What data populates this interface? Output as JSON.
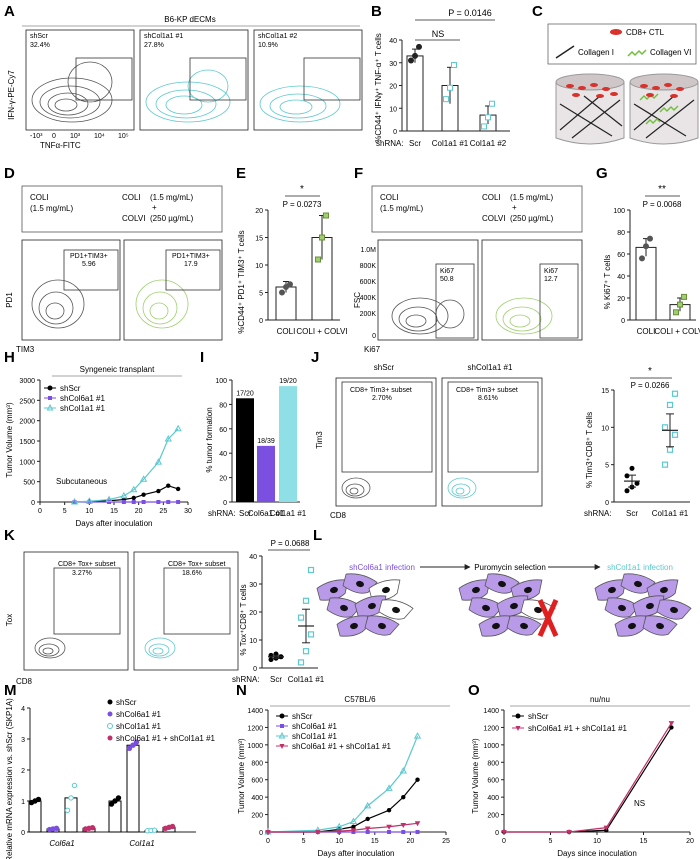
{
  "panel_letters": [
    "A",
    "B",
    "C",
    "D",
    "E",
    "F",
    "G",
    "H",
    "I",
    "J",
    "K",
    "L",
    "M",
    "N",
    "O"
  ],
  "colors": {
    "gray": "#555555",
    "cyan": "#5cc8d0",
    "green": "#9fcf6f",
    "purple": "#7b4fe0",
    "cyan_light": "#8fe0e6",
    "black": "#000000"
  },
  "A": {
    "header": "B6-KP dECMs",
    "yaxis": "IFN-γ-PE-Cy7",
    "xaxis": "TNFα-FITC",
    "plots": [
      {
        "name": "shScr",
        "pct": "32.4%"
      },
      {
        "name": "shCol1a1 #1",
        "pct": "27.8%"
      },
      {
        "name": "shCol1a1 #2",
        "pct": "10.9%"
      }
    ],
    "ticks_y": [
      "10⁵",
      "10⁴",
      "10³",
      "0",
      "-10³"
    ],
    "ticks_x": [
      "-10³",
      "0",
      "10³",
      "10⁴",
      "10⁵"
    ]
  },
  "B": {
    "p_top": "P = 0.0146",
    "ns": "NS",
    "ylabel": "%CD44⁺ IFNγ⁺ TNF-α⁺ T cells",
    "shrna_label": "shRNA:",
    "categories": [
      "Scr",
      "Col1a1 #1",
      "Col1a1 #2"
    ],
    "yticks": [
      "0",
      "10",
      "20",
      "30",
      "40"
    ]
  },
  "C": {
    "legend_ctl": "CD8+ CTL",
    "legend_col1": "Collagen I",
    "legend_col6": "Collagen VI"
  },
  "D": {
    "cond1_l1": "COLI",
    "cond1_l2": "(1.5 mg/mL)",
    "cond2_l1": "COLI",
    "cond2_l2": "(1.5 mg/mL)",
    "cond2_plus": "+",
    "cond2_l3": "COLVI",
    "cond2_l4": "(250 µg/mL)",
    "gate_label": "PD1+TIM3+",
    "gate1_val": "5.96",
    "gate2_val": "17.9",
    "yaxis": "PD1",
    "xaxis": "TIM3"
  },
  "E": {
    "star": "*",
    "p": "P = 0.0273",
    "ylabel": "%CD44⁺ PD1⁺ TIM3⁺ T cells",
    "categories": [
      "COLI",
      "COLI + COLVI"
    ],
    "yticks": [
      "0",
      "5",
      "10",
      "15",
      "20"
    ]
  },
  "F": {
    "cond1_l1": "COLI",
    "cond1_l2": "(1.5 mg/mL)",
    "cond2_l1": "COLI",
    "cond2_l2": "(1.5 mg/mL)",
    "cond2_plus": "+",
    "cond2_l3": "COLVI",
    "cond2_l4": "(250 µg/mL)",
    "gate_label": "Ki67",
    "gate1_val": "50.8",
    "gate2_val": "12.7",
    "yaxis": "FSC",
    "xaxis": "Ki67",
    "yticks": [
      "1.0M",
      "800K",
      "600K",
      "400K",
      "200K",
      "0"
    ]
  },
  "G": {
    "star": "**",
    "p": "P = 0.0068",
    "ylabel": "% Ki67⁺ T cells",
    "categories": [
      "COLI",
      "COLI + COLVI"
    ],
    "yticks": [
      "0",
      "20",
      "40",
      "60",
      "80",
      "100"
    ]
  },
  "H": {
    "banner": "Syngeneic transplant",
    "ylabel": "Tumor Volume (mm³)",
    "xlabel": "Days after inoculation",
    "inner": "Subcutaneous",
    "legend": [
      "shScr",
      "shCol6a1 #1",
      "shCol1a1 #1"
    ],
    "yticks": [
      "0",
      "500",
      "1000",
      "1500",
      "2000",
      "2500",
      "3000"
    ],
    "xticks": [
      "0",
      "5",
      "10",
      "15",
      "20",
      "25",
      "30"
    ]
  },
  "I": {
    "ylabel": "% tumor formation",
    "labels": [
      "17/20",
      "18/39",
      "19/20"
    ],
    "shrna_label": "shRNA:",
    "categories": [
      "Scr",
      "Col6a1 #1",
      "Col1a1 #1"
    ],
    "yticks": [
      "0",
      "20",
      "40",
      "60",
      "80",
      "100"
    ]
  },
  "J": {
    "titles": [
      "shScr",
      "shCol1a1 #1"
    ],
    "gate_label": "CD8+ Tim3+ subset",
    "gate_vals": [
      "2.70%",
      "8.61%"
    ],
    "yaxis": "Tim3",
    "xaxis": "CD8",
    "star": "*",
    "p": "P = 0.0266",
    "ylabel": "% Tim3⁺CD8⁺ T cells",
    "shrna_label": "shRNA:",
    "categories": [
      "Scr",
      "Col1a1 #1"
    ],
    "yticks": [
      "0",
      "5",
      "10",
      "15"
    ]
  },
  "K": {
    "gate_label": "CD8+ Tox+ subset",
    "gate_vals": [
      "3.27%",
      "18.6%"
    ],
    "yaxis": "Tox",
    "xaxis": "CD8",
    "p": "P = 0.0688",
    "ylabel": "% Tox⁺CD8⁺ T cells",
    "shrna_label": "shRNA:",
    "categories": [
      "Scr",
      "Col1a1 #1"
    ],
    "yticks": [
      "0",
      "10",
      "20",
      "30",
      "40"
    ]
  },
  "L": {
    "step1": "shCol6a1 infection",
    "step2": "Puromycin selection",
    "step3": "shCol1a1 infection"
  },
  "M": {
    "ylabel": "Relative mRNA expression vs. shScr (SKP1A)",
    "legend": [
      "shScr",
      "shCol6a1 #1",
      "shCol1a1 #1",
      "shCol6a1 #1 + shCol1a1 #1"
    ],
    "genes": [
      "Col6a1",
      "Col1a1"
    ],
    "yticks": [
      "0",
      "1",
      "2",
      "3",
      "4"
    ]
  },
  "N": {
    "banner": "C57BL/6",
    "ylabel": "Tumor Volume (mm³)",
    "xlabel": "Days after inoculation",
    "legend": [
      "shScr",
      "shCol6a1 #1",
      "shCol1a1 #1",
      "shCol6a1 #1 + shCol1a1 #1"
    ],
    "yticks": [
      "0",
      "200",
      "400",
      "600",
      "800",
      "1000",
      "1200",
      "1400"
    ],
    "xticks": [
      "0",
      "5",
      "10",
      "15",
      "20",
      "25"
    ]
  },
  "O": {
    "banner": "nu/nu",
    "ylabel": "Tumor Volume (mm³)",
    "xlabel": "Days since inoculation",
    "legend": [
      "shScr",
      "shCol6a1 #1 + shCol1a1 #1"
    ],
    "ns": "NS",
    "yticks": [
      "0",
      "200",
      "400",
      "600",
      "800",
      "1000",
      "1200",
      "1400"
    ],
    "xticks": [
      "0",
      "5",
      "10",
      "15",
      "20"
    ]
  },
  "chart_data": [
    {
      "panel": "B",
      "type": "bar",
      "categories": [
        "Scr",
        "Col1a1 #1",
        "Col1a1 #2"
      ],
      "values": [
        33,
        20,
        7
      ],
      "errors": [
        3,
        8,
        4
      ],
      "points": [
        [
          31,
          33,
          37
        ],
        [
          14,
          19,
          29
        ],
        [
          2,
          6,
          12
        ]
      ],
      "ylim": [
        0,
        40
      ]
    },
    {
      "panel": "E",
      "type": "bar",
      "categories": [
        "COLI",
        "COLI + COLVI"
      ],
      "values": [
        6,
        15
      ],
      "errors": [
        1,
        4
      ],
      "points": [
        [
          5,
          6,
          6.5
        ],
        [
          11,
          15,
          19
        ]
      ],
      "ylim": [
        0,
        20
      ]
    },
    {
      "panel": "G",
      "type": "bar",
      "categories": [
        "COLI",
        "COLI + COLVI"
      ],
      "values": [
        66,
        14
      ],
      "errors": [
        8,
        6
      ],
      "points": [
        [
          56,
          67,
          74
        ],
        [
          7,
          14,
          21
        ]
      ],
      "ylim": [
        0,
        100
      ]
    },
    {
      "panel": "I",
      "type": "bar",
      "categories": [
        "Scr",
        "Col6a1 #1",
        "Col1a1 #1"
      ],
      "values": [
        85,
        46,
        95
      ],
      "ylim": [
        0,
        100
      ]
    },
    {
      "panel": "J",
      "type": "scatter",
      "categories": [
        "Scr",
        "Col1a1 #1"
      ],
      "values": [
        2.8,
        9.6
      ],
      "errors": [
        0.8,
        2.2
      ],
      "points": [
        [
          1.5,
          2,
          2.5,
          3.5,
          4.5
        ],
        [
          5,
          7,
          9,
          10,
          13,
          14.5
        ]
      ],
      "ylim": [
        0,
        15
      ]
    },
    {
      "panel": "K",
      "type": "scatter",
      "categories": [
        "Scr",
        "Col1a1 #1"
      ],
      "values": [
        4,
        15
      ],
      "errors": [
        0.6,
        6
      ],
      "points": [
        [
          3,
          3.5,
          4,
          4.5,
          5
        ],
        [
          2,
          6,
          12,
          18,
          24,
          35
        ]
      ],
      "ylim": [
        0,
        40
      ]
    },
    {
      "panel": "M",
      "type": "bar",
      "categories": [
        "Col6a1",
        "Col1a1"
      ],
      "series": [
        {
          "name": "shScr",
          "values": [
            1.0,
            1.0
          ],
          "points": [
            [
              0.95,
              1.0,
              1.05
            ],
            [
              0.9,
              1.0,
              1.1
            ]
          ]
        },
        {
          "name": "shCol6a1 #1",
          "values": [
            0.1,
            2.8
          ],
          "points": [
            [
              0.08,
              0.1,
              0.12
            ],
            [
              2.7,
              2.8,
              2.9
            ]
          ]
        },
        {
          "name": "shCol1a1 #1",
          "values": [
            1.1,
            0.05
          ],
          "points": [
            [
              0.7,
              1.1,
              1.5
            ],
            [
              0.04,
              0.05,
              0.06
            ]
          ]
        },
        {
          "name": "shCol6a1 #1 + shCol1a1 #1",
          "values": [
            0.12,
            0.15
          ],
          "points": [
            [
              0.1,
              0.12,
              0.14
            ],
            [
              0.12,
              0.15,
              0.18
            ]
          ]
        }
      ],
      "ylim": [
        0,
        4
      ]
    },
    {
      "panel": "H",
      "type": "line",
      "x": [
        7,
        10,
        14,
        17,
        19,
        21,
        24,
        26,
        28
      ],
      "series": [
        {
          "name": "shScr",
          "values": [
            0,
            10,
            30,
            60,
            100,
            180,
            270,
            400,
            320
          ]
        },
        {
          "name": "shCol6a1 #1",
          "values": [
            0,
            0,
            0,
            0,
            0,
            0,
            0,
            0,
            0
          ]
        },
        {
          "name": "shCol1a1 #1",
          "values": [
            0,
            20,
            60,
            150,
            300,
            560,
            980,
            1550,
            1800
          ]
        }
      ],
      "ylim": [
        0,
        3000
      ],
      "xlim": [
        0,
        30
      ]
    },
    {
      "panel": "N",
      "type": "line",
      "x": [
        0,
        7,
        10,
        12,
        14,
        17,
        19,
        21
      ],
      "series": [
        {
          "name": "shScr",
          "values": [
            0,
            0,
            30,
            60,
            150,
            250,
            400,
            600
          ]
        },
        {
          "name": "shCol6a1 #1",
          "values": [
            0,
            0,
            0,
            0,
            0,
            0,
            0,
            0
          ]
        },
        {
          "name": "shCol1a1 #1",
          "values": [
            0,
            20,
            60,
            120,
            300,
            500,
            700,
            1100
          ]
        },
        {
          "name": "shCol6a1 #1 + shCol1a1 #1",
          "values": [
            0,
            0,
            10,
            20,
            40,
            60,
            80,
            100
          ]
        }
      ],
      "ylim": [
        0,
        1400
      ],
      "xlim": [
        0,
        25
      ]
    },
    {
      "panel": "O",
      "type": "line",
      "x": [
        0,
        7,
        11,
        18
      ],
      "series": [
        {
          "name": "shScr",
          "values": [
            0,
            0,
            20,
            1200
          ]
        },
        {
          "name": "shCol6a1 #1 + shCol1a1 #1",
          "values": [
            0,
            0,
            50,
            1250
          ]
        }
      ],
      "ylim": [
        0,
        1400
      ],
      "xlim": [
        0,
        20
      ]
    }
  ]
}
